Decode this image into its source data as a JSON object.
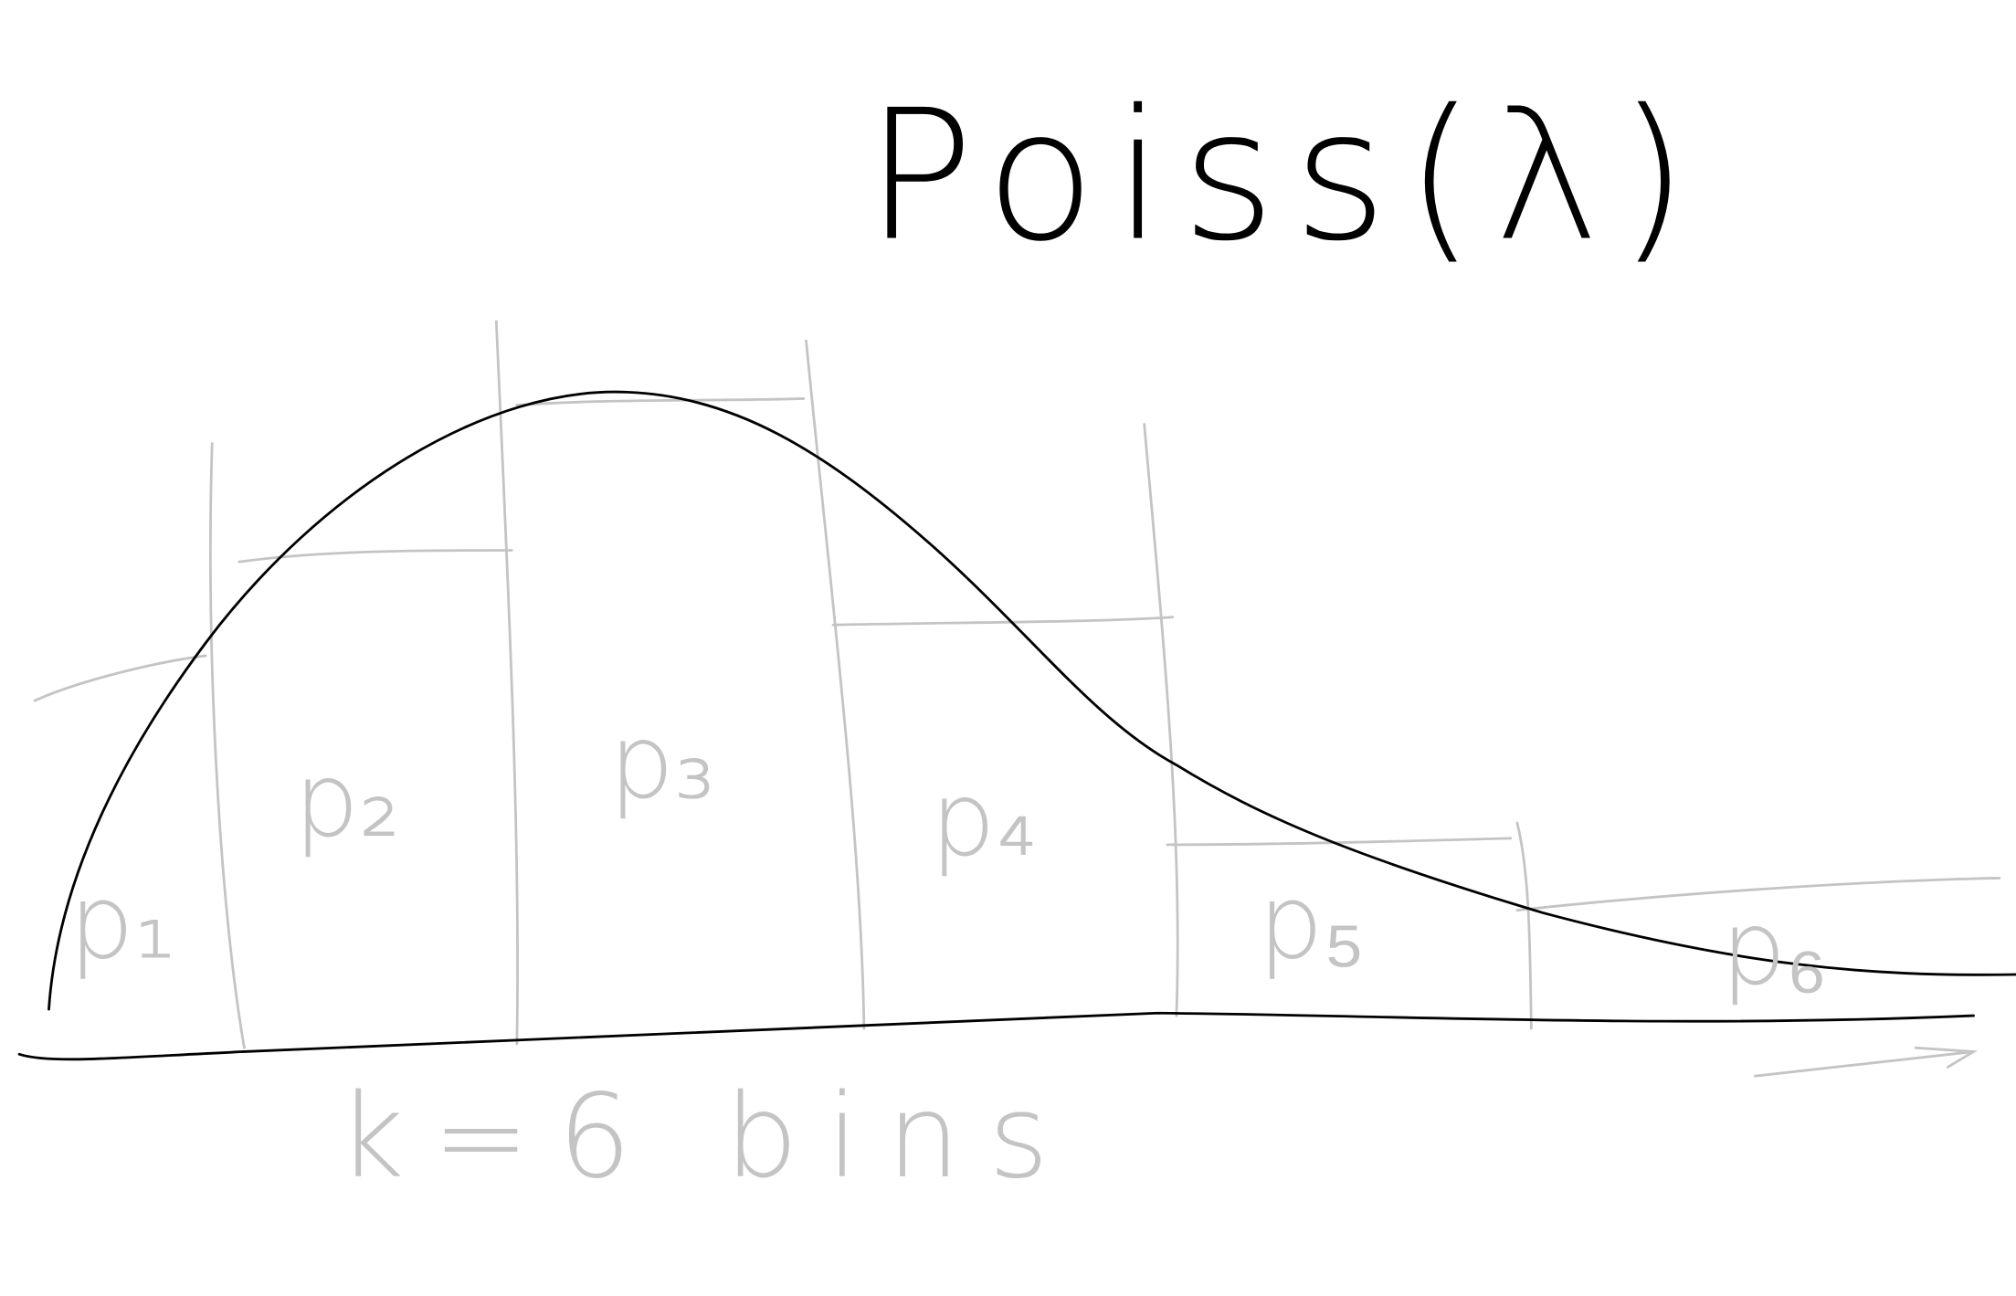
{
  "title": "Poiss(λ)",
  "bins": [
    "p₁",
    "p₂",
    "p₃",
    "p₄",
    "p₅",
    "p₆"
  ],
  "caption": "k=6 bins"
}
